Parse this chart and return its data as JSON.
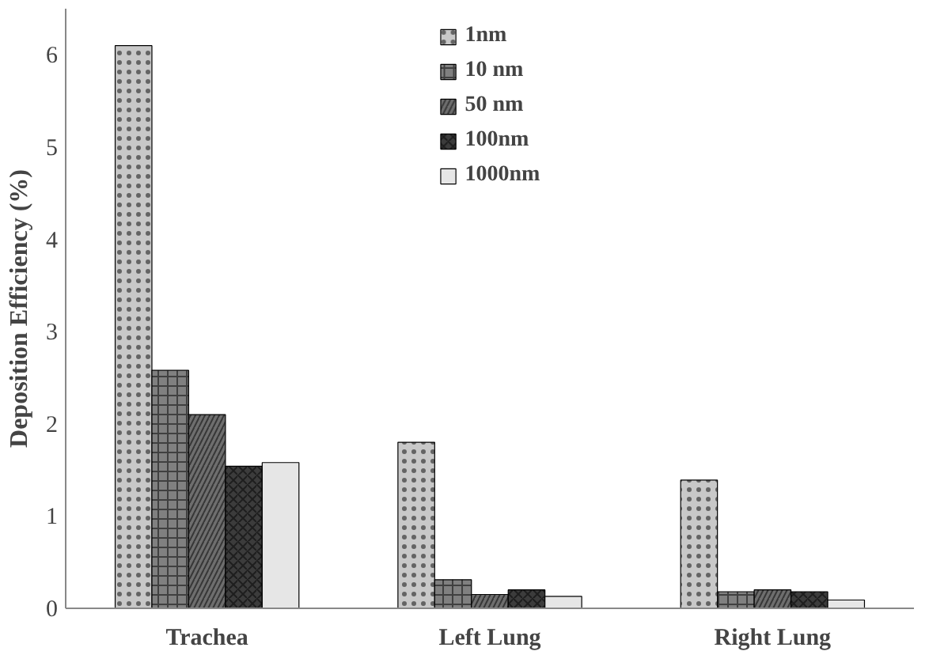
{
  "chart_data": {
    "type": "bar",
    "ylabel": "Deposition Efficiency (%)",
    "categories": [
      "Trachea",
      "Left Lung",
      "Right Lung"
    ],
    "series": [
      {
        "name": "1nm",
        "color": "#c8c8c8",
        "values": [
          6.1,
          1.8,
          1.39
        ]
      },
      {
        "name": "10 nm",
        "color": "#808080",
        "values": [
          2.58,
          0.31,
          0.18
        ]
      },
      {
        "name": "50 nm",
        "color": "#6e6e6e",
        "values": [
          2.1,
          0.15,
          0.2
        ]
      },
      {
        "name": "100nm",
        "color": "#3c3c3c",
        "values": [
          1.54,
          0.2,
          0.18
        ]
      },
      {
        "name": "1000nm",
        "color": "#e6e6e6",
        "values": [
          1.58,
          0.13,
          0.09
        ]
      }
    ],
    "ylim": [
      0,
      6.5
    ],
    "yticks": [
      0,
      1,
      2,
      3,
      4,
      5,
      6
    ],
    "grid": false,
    "legend": "top"
  }
}
